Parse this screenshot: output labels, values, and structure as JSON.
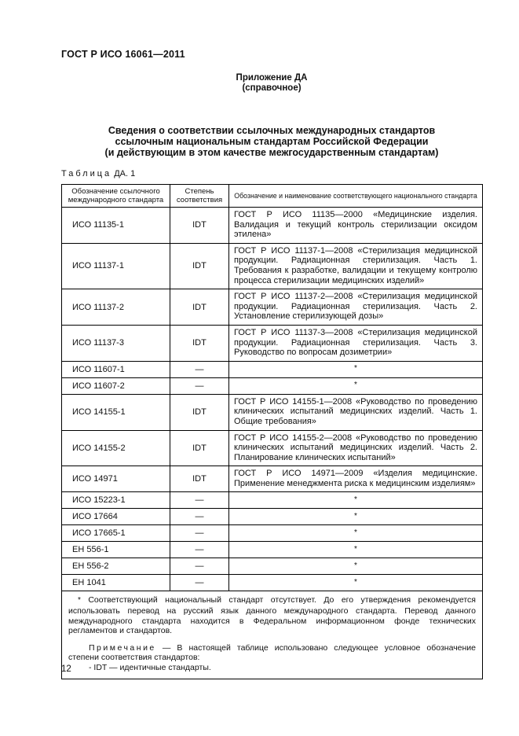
{
  "page": {
    "doc_code": "ГОСТ Р ИСО 16061—2011",
    "appendix_title": "Приложение ДА",
    "appendix_subtitle": "(справочное)",
    "title_line1": "Сведения о соответствии ссылочных международных стандартов",
    "title_line2": "ссылочным национальным стандартам Российской Федерации",
    "title_line3": "(и действующим в этом качестве межгосударственным стандартам)",
    "page_number": "12"
  },
  "table": {
    "caption_word": "Таблица",
    "caption_rest": "ДА. 1",
    "headers": [
      "Обозначение ссылочного международного стандарта",
      "Степень соответствия",
      "Обозначение и наименование соответствующего национального стандарта"
    ],
    "rows": [
      {
        "intl": "ИСО 11135-1",
        "degree": "IDT",
        "national": "ГОСТ Р ИСО 11135—2000 «Медицинские изделия. Валидация и текущий контроль стерилизации оксидом этилена»"
      },
      {
        "intl": "ИСО 11137-1",
        "degree": "IDT",
        "national": "ГОСТ Р ИСО 11137-1—2008 «Стерилизация медицинской продукции. Радиационная стерилизация. Часть 1. Требования к разработке, валидации и текущему контролю процесса стерилизации медицинских изделий»"
      },
      {
        "intl": "ИСО 11137-2",
        "degree": "IDT",
        "national": "ГОСТ Р ИСО 11137-2—2008 «Стерилизация медицинской продукции. Радиационная стерилизация. Часть 2. Установление стерилизующей дозы»"
      },
      {
        "intl": "ИСО 11137-3",
        "degree": "IDT",
        "national": "ГОСТ Р ИСО 11137-3—2008 «Стерилизация медицинской продукции. Радиационная стерилизация. Часть 3. Руководство по вопросам дозиметрии»"
      },
      {
        "intl": "ИСО 11607-1",
        "degree": "—",
        "national": "*"
      },
      {
        "intl": "ИСО 11607-2",
        "degree": "—",
        "national": "*"
      },
      {
        "intl": "ИСО 14155-1",
        "degree": "IDT",
        "national": "ГОСТ Р ИСО 14155-1—2008 «Руководство по проведению клинических испытаний медицинских изделий. Часть 1. Общие требования»"
      },
      {
        "intl": "ИСО 14155-2",
        "degree": "IDT",
        "national": "ГОСТ Р ИСО 14155-2—2008 «Руководство по проведению клинических испытаний медицинских изделий. Часть 2. Планирование клинических испытаний»"
      },
      {
        "intl": "ИСО 14971",
        "degree": "IDT",
        "national": "ГОСТ Р ИСО 14971—2009 «Изделия медицинские. Применение менеджмента риска к медицинским изделиям»"
      },
      {
        "intl": "ИСО 15223-1",
        "degree": "—",
        "national": "*"
      },
      {
        "intl": "ИСО 17664",
        "degree": "—",
        "national": "*"
      },
      {
        "intl": "ИСО 17665-1",
        "degree": "—",
        "national": "*"
      },
      {
        "intl": "ЕН 556-1",
        "degree": "—",
        "national": "*"
      },
      {
        "intl": "ЕН 556-2",
        "degree": "—",
        "national": "*"
      },
      {
        "intl": "ЕН 1041",
        "degree": "—",
        "national": "*"
      }
    ],
    "footnote_star": "*",
    "footnote_text": "Соответствующий национальный стандарт отсутствует. До его утверждения рекомендуется использовать перевод на русский язык данного международного стандарта. Перевод данного международного стандарта находится в Федеральном информационном фонде технических регламентов и стандартов.",
    "note_word": "Примечание",
    "note_text": "— В настоящей таблице использовано следующее условное обозначение степени соответствия стандартов:",
    "note_item": "- IDT — идентичные стандарты."
  }
}
